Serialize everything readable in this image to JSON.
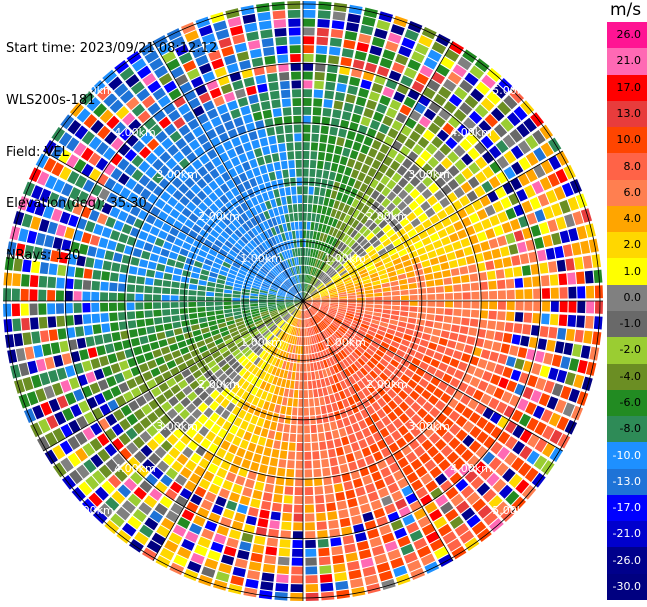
{
  "header": {
    "start_time": "Start time: 2023/09/21 08:12:12",
    "instrument": "WLS200s-181",
    "field": "Field: VEL",
    "elevation": "Elevation(deg): 35.30",
    "nrays": "NRays: 120"
  },
  "colorbar": {
    "unit": "m/s",
    "ticks": [
      "26.0",
      "21.0",
      "17.0",
      "13.0",
      "10.0",
      "8.0",
      "6.0",
      "4.0",
      "2.0",
      "1.0",
      "0.0",
      "-1.0",
      "-2.0",
      "-4.0",
      "-6.0",
      "-8.0",
      "-10.0",
      "-13.0",
      "-17.0",
      "-21.0",
      "-26.0",
      "-30.0"
    ],
    "colors": [
      "#ff1493",
      "#ff69b4",
      "#ff0000",
      "#e83c3c",
      "#ff4500",
      "#ff6347",
      "#ff7f50",
      "#ffa500",
      "#ffd700",
      "#ffff00",
      "#808080",
      "#696969",
      "#9acd32",
      "#6b8e23",
      "#228b22",
      "#2e8b57",
      "#1e90ff",
      "#1e73d7",
      "#0000ff",
      "#0000cd",
      "#00008b",
      "#000080"
    ]
  },
  "rings": {
    "labels": [
      "1.00km",
      "2.00km",
      "3.00km",
      "4.00km",
      "5.00km"
    ]
  }
}
